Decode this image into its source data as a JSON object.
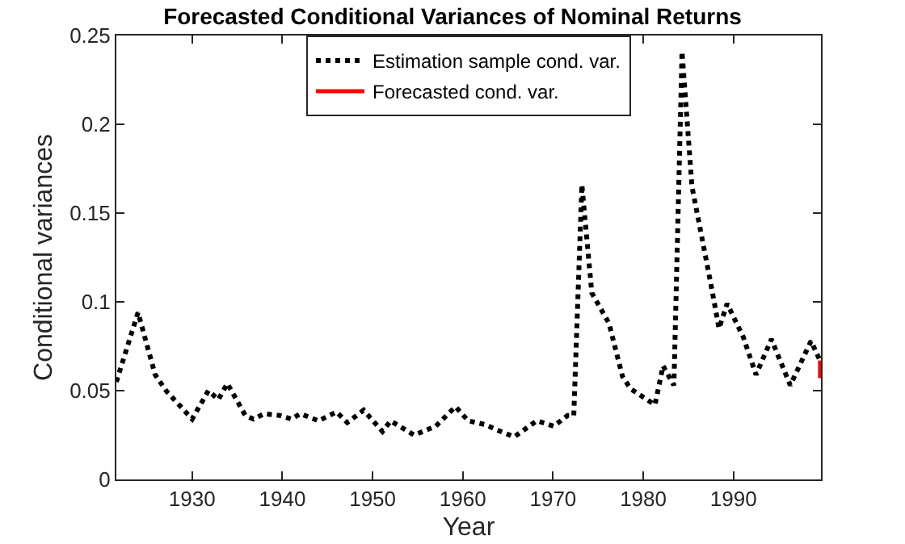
{
  "chart_data": {
    "type": "line",
    "title": "Forecasted Conditional Variances of Nominal Returns",
    "xlabel": "Year",
    "ylabel": "Conditional variances",
    "xlim": [
      1921.6,
      1999.7
    ],
    "xticks": [
      1930,
      1940,
      1950,
      1960,
      1970,
      1980,
      1990
    ],
    "ylim": [
      0,
      0.25
    ],
    "yticks": [
      0,
      0.05,
      0.1,
      0.15,
      0.2,
      0.25
    ],
    "grid": false,
    "legend": "top",
    "marker": "none",
    "series": [
      {
        "name": "Estimation sample cond. var.",
        "color": "#000000",
        "line_style": "dotted",
        "x": [
          1921.6,
          1924,
          1925.9,
          1927.1,
          1930,
          1931.8,
          1932.9,
          1933.9,
          1935.9,
          1936.8,
          1938,
          1939.7,
          1941,
          1942,
          1944,
          1946,
          1947.2,
          1949,
          1951.1,
          1952,
          1954.6,
          1955.6,
          1957,
          1959.2,
          1960.6,
          1962.4,
          1964.2,
          1965.7,
          1968.2,
          1970.1,
          1971.6,
          1972.3,
          1973.2,
          1974.3,
          1976.2,
          1977.7,
          1978.6,
          1981.3,
          1982.2,
          1983.4,
          1984.3,
          1985.4,
          1987.5,
          1988.4,
          1989.3,
          1991.1,
          1992.5,
          1994.2,
          1996.3,
          1998.6,
          1999.5
        ],
        "values": [
          0.055,
          0.094,
          0.059,
          0.05,
          0.034,
          0.05,
          0.045,
          0.054,
          0.036,
          0.034,
          0.037,
          0.036,
          0.034,
          0.037,
          0.033,
          0.038,
          0.032,
          0.039,
          0.027,
          0.033,
          0.025,
          0.027,
          0.03,
          0.041,
          0.033,
          0.031,
          0.027,
          0.024,
          0.033,
          0.03,
          0.036,
          0.036,
          0.166,
          0.105,
          0.088,
          0.058,
          0.051,
          0.042,
          0.064,
          0.053,
          0.241,
          0.165,
          0.11,
          0.085,
          0.099,
          0.08,
          0.059,
          0.079,
          0.053,
          0.078,
          0.068
        ]
      },
      {
        "name": "Forecasted cond. var.",
        "color": "#ff0000",
        "line_style": "solid",
        "x": [
          1999.6,
          1999.6
        ],
        "values": [
          0.067,
          0.057
        ]
      }
    ]
  }
}
